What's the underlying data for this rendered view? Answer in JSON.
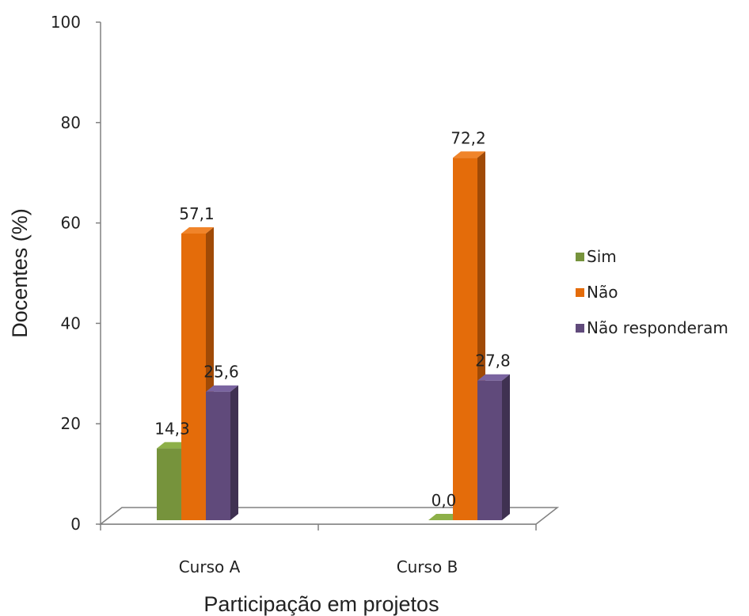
{
  "chart_data": {
    "type": "bar",
    "xlabel": "Participação em projetos",
    "ylabel": "Docentes (%)",
    "ylim": [
      0,
      100
    ],
    "yticks": [
      "0",
      "20",
      "40",
      "60",
      "80",
      "100"
    ],
    "categories": [
      "Curso A",
      "Curso B"
    ],
    "series": [
      {
        "name": "Sim",
        "values": [
          14.3,
          0.0
        ],
        "labels": [
          "14,3",
          "0,0"
        ]
      },
      {
        "name": "Não",
        "values": [
          57.1,
          72.2
        ],
        "labels": [
          "57,1",
          "72,2"
        ]
      },
      {
        "name": "Não responderam",
        "values": [
          25.6,
          27.8
        ],
        "labels": [
          "25,6",
          "27,8"
        ]
      }
    ],
    "legend_position": "right",
    "grid": false,
    "style_3d": true,
    "colors": {
      "Sim": {
        "front": "#76933c",
        "side": "#4f6228",
        "top": "#8db048"
      },
      "Não": {
        "front": "#e46c0a",
        "side": "#a04a06",
        "top": "#f0842a"
      },
      "Não responderam": {
        "front": "#604a7b",
        "side": "#3f3151",
        "top": "#7a64a0"
      }
    }
  }
}
